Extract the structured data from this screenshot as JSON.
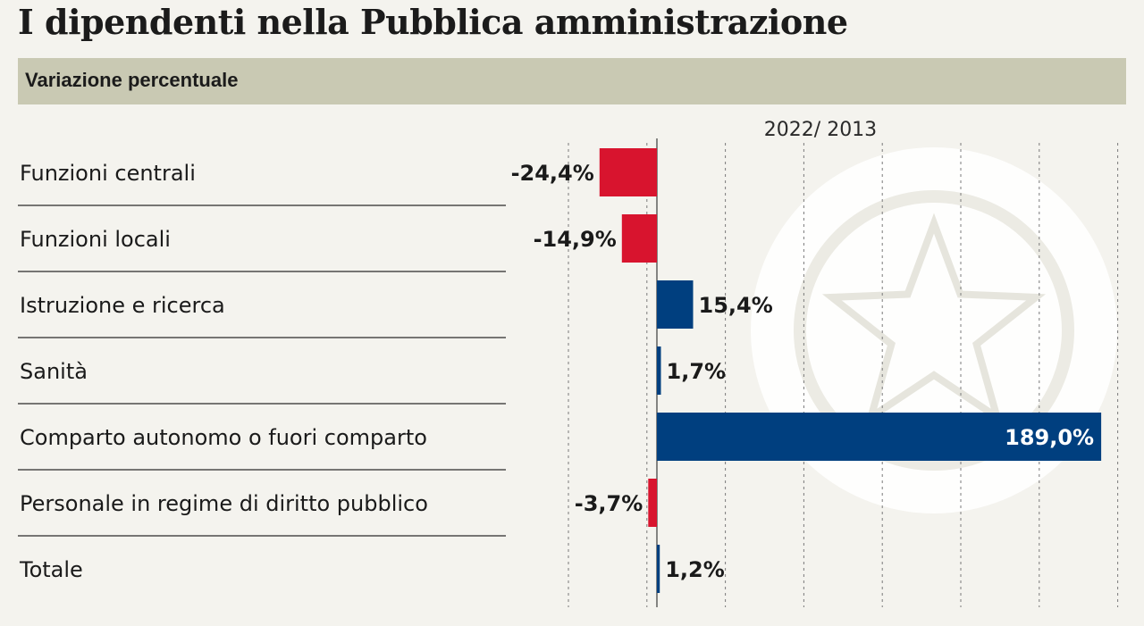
{
  "title": "I dipendenti nella Pubblica amministrazione",
  "subtitle": "Variazione percentuale",
  "chart_data": {
    "type": "bar",
    "orientation": "horizontal",
    "period_label": "2022/ 2013",
    "categories": [
      "Funzioni centrali",
      "Funzioni locali",
      "Istruzione e ricerca",
      "Sanità",
      "Comparto autonomo o fuori comparto",
      "Personale in regime di diritto pubblico",
      "Totale"
    ],
    "values": [
      -24.4,
      -14.9,
      15.4,
      1.7,
      189.0,
      -3.7,
      1.2
    ],
    "value_labels": [
      "-24,4%",
      "-14,9%",
      "15,4%",
      "1,7%",
      "189,0%",
      "-3,7%",
      "1,2%"
    ],
    "unit": "%",
    "xlim": [
      -34,
      197
    ],
    "grid": "vertical dashed",
    "colors": {
      "positive": "#003f7f",
      "negative": "#d8142e"
    }
  }
}
